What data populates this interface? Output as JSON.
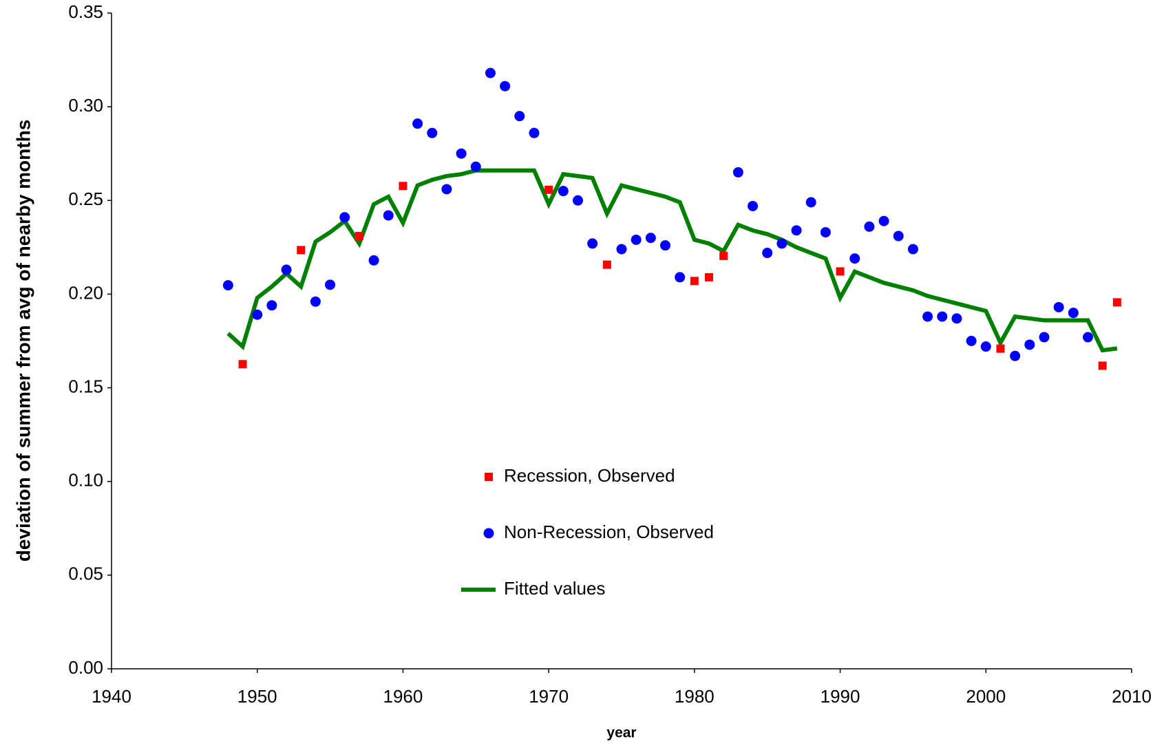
{
  "chart_data": {
    "type": "scatter",
    "x_label": "year",
    "y_label": "deviation of summer from avg of nearby months",
    "xlim": [
      1940,
      2010
    ],
    "xticks": [
      1940,
      1950,
      1960,
      1970,
      1980,
      1990,
      2000,
      2010
    ],
    "ylim": [
      0,
      0.35
    ],
    "yticks": [
      {
        "value": 0,
        "label": "0.00"
      },
      0.05,
      {
        "value": 0.1,
        "label": "0.10"
      },
      0.15,
      {
        "value": 0.2,
        "label": "0.20"
      },
      0.25,
      {
        "value": 0.3,
        "label": "0.30"
      },
      0.35
    ],
    "grid": false,
    "legend": "center",
    "series": [
      {
        "name": "Recession, Observed",
        "color": "#ff0000",
        "marker": "square",
        "x": [
          1949,
          1953,
          1957,
          1960,
          1970,
          1974,
          1980,
          1981,
          1982,
          1990,
          2001,
          2008,
          2009
        ],
        "values": [
          0.1626,
          0.2235,
          0.231,
          0.2577,
          0.2557,
          0.2157,
          0.207,
          0.209,
          0.2204,
          0.2121,
          0.1709,
          0.1618,
          0.1956
        ]
      },
      {
        "name": "Non-Recession, Observed",
        "color": "#0000ff",
        "marker": "circle",
        "x": [
          1948,
          1950,
          1951,
          1952,
          1954,
          1955,
          1956,
          1958,
          1959,
          1961,
          1962,
          1963,
          1964,
          1965,
          1966,
          1967,
          1968,
          1969,
          1971,
          1972,
          1973,
          1975,
          1976,
          1977,
          1978,
          1979,
          1983,
          1984,
          1985,
          1986,
          1987,
          1988,
          1989,
          1991,
          1992,
          1993,
          1994,
          1995,
          1996,
          1997,
          1998,
          1999,
          2000,
          2002,
          2003,
          2004,
          2005,
          2006,
          2007
        ],
        "values": [
          0.2047,
          0.189,
          0.194,
          0.213,
          0.196,
          0.205,
          0.241,
          0.218,
          0.242,
          0.291,
          0.286,
          0.256,
          0.275,
          0.268,
          0.318,
          0.311,
          0.295,
          0.286,
          0.255,
          0.25,
          0.227,
          0.224,
          0.229,
          0.23,
          0.226,
          0.209,
          0.265,
          0.247,
          0.222,
          0.227,
          0.234,
          0.249,
          0.233,
          0.219,
          0.236,
          0.239,
          0.231,
          0.224,
          0.188,
          0.188,
          0.187,
          0.175,
          0.172,
          0.167,
          0.173,
          0.177,
          0.193,
          0.19,
          0.177
        ]
      },
      {
        "name": "Fitted values",
        "color": "#008000",
        "marker": "line",
        "x": [
          1948,
          1949,
          1950,
          1951,
          1952,
          1953,
          1954,
          1955,
          1956,
          1957,
          1958,
          1959,
          1960,
          1961,
          1962,
          1963,
          1964,
          1965,
          1966,
          1967,
          1968,
          1969,
          1970,
          1971,
          1972,
          1973,
          1974,
          1975,
          1976,
          1977,
          1978,
          1979,
          1980,
          1981,
          1982,
          1983,
          1984,
          1985,
          1986,
          1987,
          1988,
          1989,
          1990,
          1991,
          1992,
          1993,
          1994,
          1995,
          1996,
          1997,
          1998,
          1999,
          2000,
          2001,
          2002,
          2003,
          2004,
          2005,
          2006,
          2007,
          2008,
          2009
        ],
        "values": [
          0.179,
          0.172,
          0.198,
          0.204,
          0.211,
          0.204,
          0.228,
          0.233,
          0.239,
          0.227,
          0.248,
          0.252,
          0.238,
          0.258,
          0.261,
          0.263,
          0.264,
          0.266,
          0.266,
          0.266,
          0.266,
          0.266,
          0.248,
          0.264,
          0.263,
          0.262,
          0.243,
          0.258,
          0.256,
          0.254,
          0.252,
          0.249,
          0.229,
          0.227,
          0.223,
          0.237,
          0.234,
          0.232,
          0.229,
          0.225,
          0.222,
          0.219,
          0.198,
          0.212,
          0.209,
          0.206,
          0.204,
          0.202,
          0.199,
          0.197,
          0.195,
          0.193,
          0.191,
          0.174,
          0.188,
          0.187,
          0.186,
          0.186,
          0.186,
          0.186,
          0.17,
          0.171
        ]
      }
    ]
  }
}
